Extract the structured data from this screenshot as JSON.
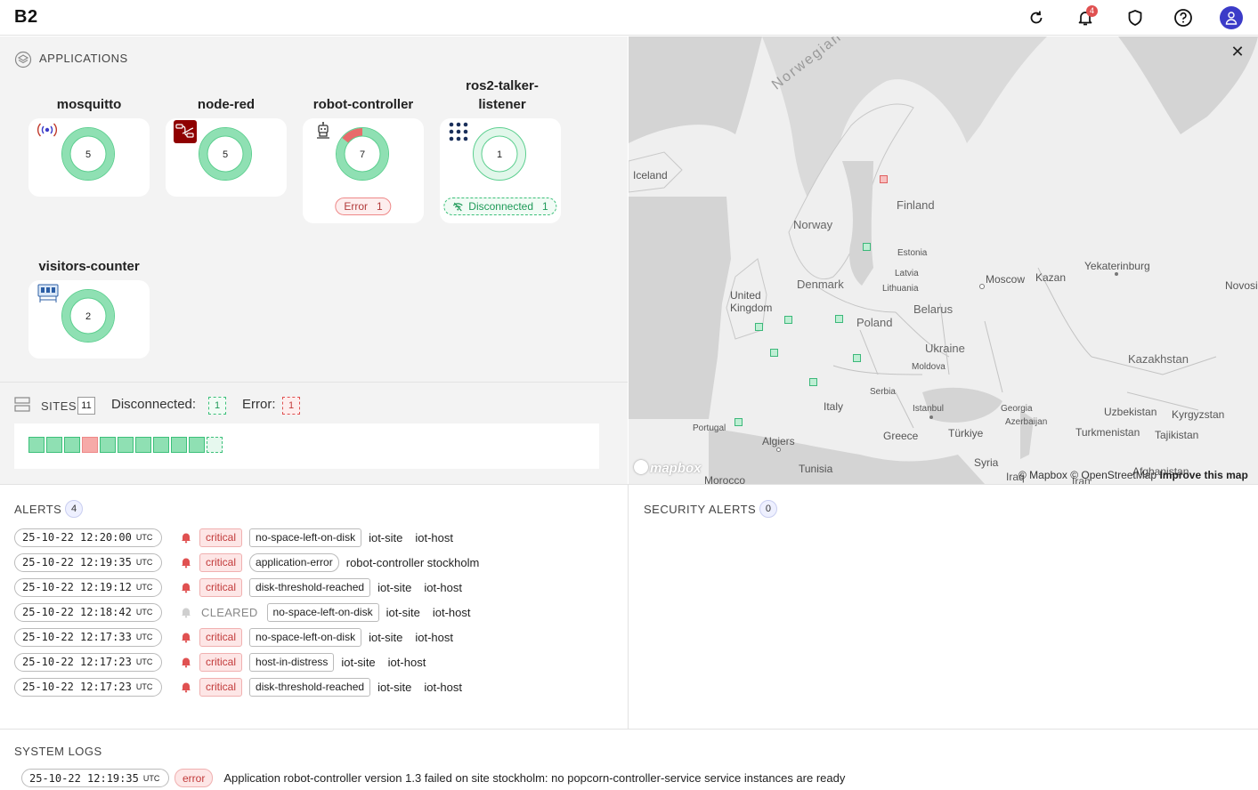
{
  "header": {
    "logo": "B2",
    "notification_count": "4",
    "icons": [
      "refresh-icon",
      "bell-icon",
      "shield-icon",
      "help-icon",
      "user-icon"
    ]
  },
  "applications": {
    "title": "APPLICATIONS",
    "apps": [
      {
        "name": "mosquitto",
        "count": "5",
        "icon": "broadcast-icon",
        "error_fraction": 0
      },
      {
        "name": "node-red",
        "count": "5",
        "icon": "node-red-icon",
        "error_fraction": 0
      },
      {
        "name": "robot-controller",
        "count": "7",
        "icon": "robot-icon",
        "error_fraction": 0.143,
        "status_label": "Error",
        "status_count": "1"
      },
      {
        "name": "ros2-talker-listener",
        "count": "1",
        "icon": "grid-dots-icon",
        "disconnected": true,
        "status_label": "Disconnected",
        "status_count": "1"
      },
      {
        "name": "visitors-counter",
        "count": "2",
        "icon": "counter-icon",
        "error_fraction": 0
      }
    ]
  },
  "sites": {
    "title": "SITES",
    "count": "11",
    "disconnected_label": "Disconnected:",
    "disconnected_count": "1",
    "error_label": "Error:",
    "error_count": "1",
    "states": [
      "ok",
      "ok",
      "ok",
      "error",
      "ok",
      "ok",
      "ok",
      "ok",
      "ok",
      "ok",
      "disconnected"
    ]
  },
  "map": {
    "labels": {
      "norwegian_sea": "Norwegian Sea",
      "iceland": "Iceland",
      "finland": "Finland",
      "norway": "Norway",
      "estonia": "Estonia",
      "latvia": "Latvia",
      "lithuania": "Lithuania",
      "denmark": "Denmark",
      "united_kingdom": "United Kingdom",
      "poland": "Poland",
      "belarus": "Belarus",
      "moscow": "Moscow",
      "kazan": "Kazan",
      "yekaterinburg": "Yekaterinburg",
      "novosibirsk": "Novosib",
      "ukraine": "Ukraine",
      "moldova": "Moldova",
      "kazakhstan": "Kazakhstan",
      "serbia": "Serbia",
      "italy": "Italy",
      "istanbul": "Istanbul",
      "georgia": "Georgia",
      "azerbaijan": "Azerbaijan",
      "uzbekistan": "Uzbekistan",
      "kyrgyzstan": "Kyrgyzstan",
      "portugal": "Portugal",
      "algiers": "Algiers",
      "greece": "Greece",
      "turkiye": "Türkiye",
      "turkmenistan": "Turkmenistan",
      "tajikistan": "Tajikistan",
      "syria": "Syria",
      "tunisia": "Tunisia",
      "morocco": "Morocco",
      "iraq": "Iraq",
      "iran": "Iran",
      "afghanistan": "Afghanistan"
    },
    "logo": "mapbox",
    "attribution_mapbox": "© Mapbox",
    "attribution_osm": "© OpenStreetMap",
    "attribution_improve": "Improve this map"
  },
  "alerts": {
    "title": "ALERTS",
    "count": "4",
    "rows": [
      {
        "time": "25-10-22 12:20:00",
        "utc": "UTC",
        "severity": "critical",
        "type": "no-space-left-on-disk",
        "site": "iot-site",
        "host": "iot-host"
      },
      {
        "time": "25-10-22 12:19:35",
        "utc": "UTC",
        "severity": "critical",
        "type": "application-error",
        "site": "robot-controller stockholm",
        "host": ""
      },
      {
        "time": "25-10-22 12:19:12",
        "utc": "UTC",
        "severity": "critical",
        "type": "disk-threshold-reached",
        "site": "iot-site",
        "host": "iot-host"
      },
      {
        "time": "25-10-22 12:18:42",
        "utc": "UTC",
        "severity": "CLEARED",
        "type": "no-space-left-on-disk",
        "site": "iot-site",
        "host": "iot-host"
      },
      {
        "time": "25-10-22 12:17:33",
        "utc": "UTC",
        "severity": "critical",
        "type": "no-space-left-on-disk",
        "site": "iot-site",
        "host": "iot-host"
      },
      {
        "time": "25-10-22 12:17:23",
        "utc": "UTC",
        "severity": "critical",
        "type": "host-in-distress",
        "site": "iot-site",
        "host": "iot-host"
      },
      {
        "time": "25-10-22 12:17:23",
        "utc": "UTC",
        "severity": "critical",
        "type": "disk-threshold-reached",
        "site": "iot-site",
        "host": "iot-host"
      }
    ]
  },
  "security_alerts": {
    "title": "SECURITY ALERTS",
    "count": "0"
  },
  "system_logs": {
    "title": "SYSTEM LOGS",
    "rows": [
      {
        "time": "25-10-22 12:19:35",
        "utc": "UTC",
        "level": "error",
        "message": "Application robot-controller version 1.3 failed on site stockholm: no popcorn-controller-service service instances are ready"
      }
    ]
  },
  "colors": {
    "ok_green": "#8fe0b3",
    "ok_border": "#3cc07a",
    "error_red": "#e05151",
    "accent_blue": "#3b3bc8"
  }
}
